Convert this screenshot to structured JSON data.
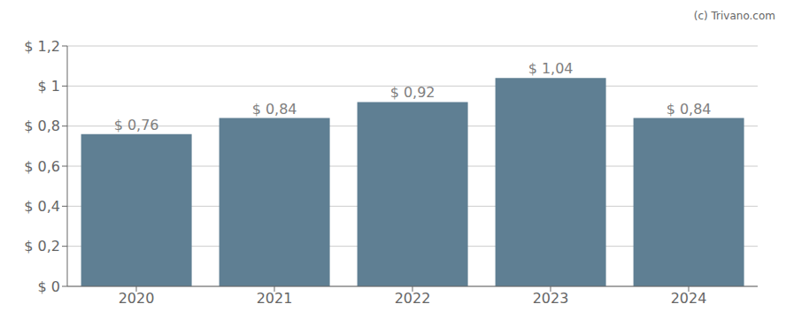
{
  "chart_data": {
    "type": "bar",
    "categories": [
      "2020",
      "2021",
      "2022",
      "2023",
      "2024"
    ],
    "values": [
      0.76,
      0.84,
      0.92,
      1.04,
      0.84
    ],
    "value_labels": [
      "$ 0,76",
      "$ 0,84",
      "$ 0,92",
      "$ 1,04",
      "$ 0,84"
    ],
    "data_labels": true,
    "color": "#5f7f93",
    "ylim": [
      0,
      1.2
    ],
    "yticks": [
      {
        "value": 0,
        "label": "$ 0"
      },
      {
        "value": 0.2,
        "label": "$ 0,2"
      },
      {
        "value": 0.4,
        "label": "$ 0,4"
      },
      {
        "value": 0.6,
        "label": "$ 0,6"
      },
      {
        "value": 0.8,
        "label": "$ 0,8"
      },
      {
        "value": 1.0,
        "label": "$ 1"
      },
      {
        "value": 1.2,
        "label": "$ 1,2"
      }
    ],
    "grid": true,
    "annotations": [
      "(c) Trivano.com"
    ]
  }
}
